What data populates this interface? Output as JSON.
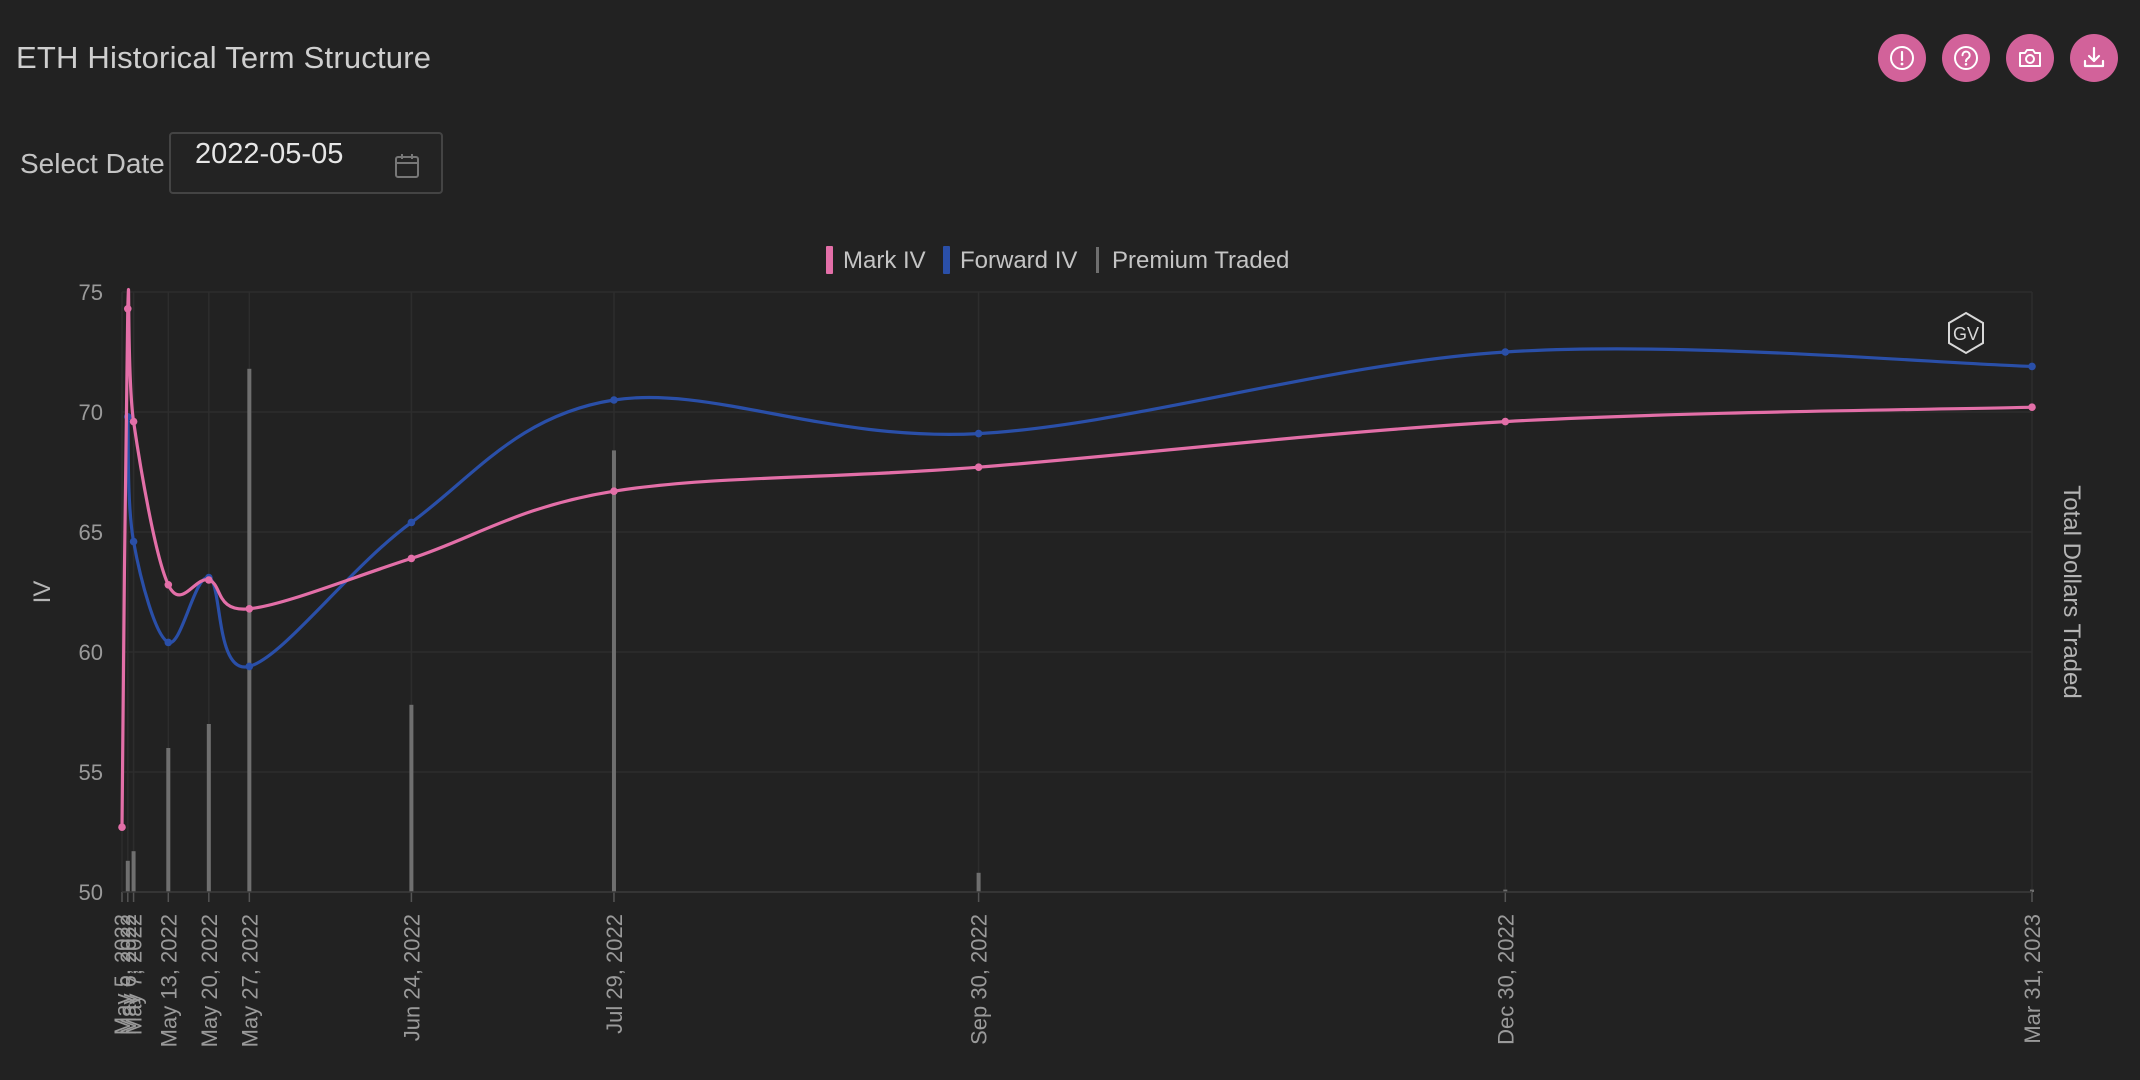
{
  "header": {
    "title": "ETH Historical Term Structure"
  },
  "toolbar": {
    "buttons": [
      {
        "name": "info-button",
        "icon": "exclamation-icon"
      },
      {
        "name": "help-button",
        "icon": "question-icon"
      },
      {
        "name": "screenshot-button",
        "icon": "camera-icon"
      },
      {
        "name": "download-button",
        "icon": "download-icon"
      }
    ]
  },
  "date_picker": {
    "label": "Select Date",
    "value": "2022-05-05"
  },
  "watermark": {
    "text": "GV"
  },
  "colors": {
    "mark": "#e36fa8",
    "forward": "#2a4fa8",
    "premium": "#6f6f6f",
    "accent": "#d2629a"
  },
  "chart_data": {
    "type": "line",
    "title": "",
    "xlabel": "",
    "ylabel": "IV",
    "y2label": "Total Dollars Traded",
    "ylim": [
      50,
      75
    ],
    "yticks": [
      50,
      55,
      60,
      65,
      70,
      75
    ],
    "x": [
      "2022-05-05",
      "2022-05-06",
      "2022-05-07",
      "2022-05-13",
      "2022-05-20",
      "2022-05-27",
      "2022-06-24",
      "2022-07-29",
      "2022-09-30",
      "2022-12-30",
      "2023-03-31"
    ],
    "x_tick_labels": [
      "May 5, 2022",
      "May 6, 2022",
      "May 7, 2022",
      "May 13, 2022",
      "May 20, 2022",
      "May 27, 2022",
      "Jun 24, 2022",
      "Jul 29, 2022",
      "Sep 30, 2022",
      "Dec 30, 2022",
      "Mar 31, 2023"
    ],
    "legend": {
      "placement": "top-center",
      "entries": [
        "Mark IV",
        "Forward IV",
        "Premium Traded"
      ]
    },
    "series": [
      {
        "name": "Mark IV",
        "type": "line",
        "values": [
          52.7,
          74.3,
          69.6,
          62.8,
          63.0,
          61.8,
          63.9,
          66.7,
          67.7,
          69.6,
          70.2
        ]
      },
      {
        "name": "Forward IV",
        "type": "line",
        "values": [
          null,
          69.8,
          64.6,
          60.4,
          63.1,
          59.4,
          65.4,
          70.5,
          69.1,
          72.5,
          71.9
        ]
      },
      {
        "name": "Premium Traded",
        "type": "bar",
        "values": [
          0,
          1.3,
          1.7,
          6.0,
          7.0,
          21.8,
          7.8,
          18.4,
          0.8,
          0.1,
          0.1
        ]
      }
    ],
    "grid": true
  }
}
